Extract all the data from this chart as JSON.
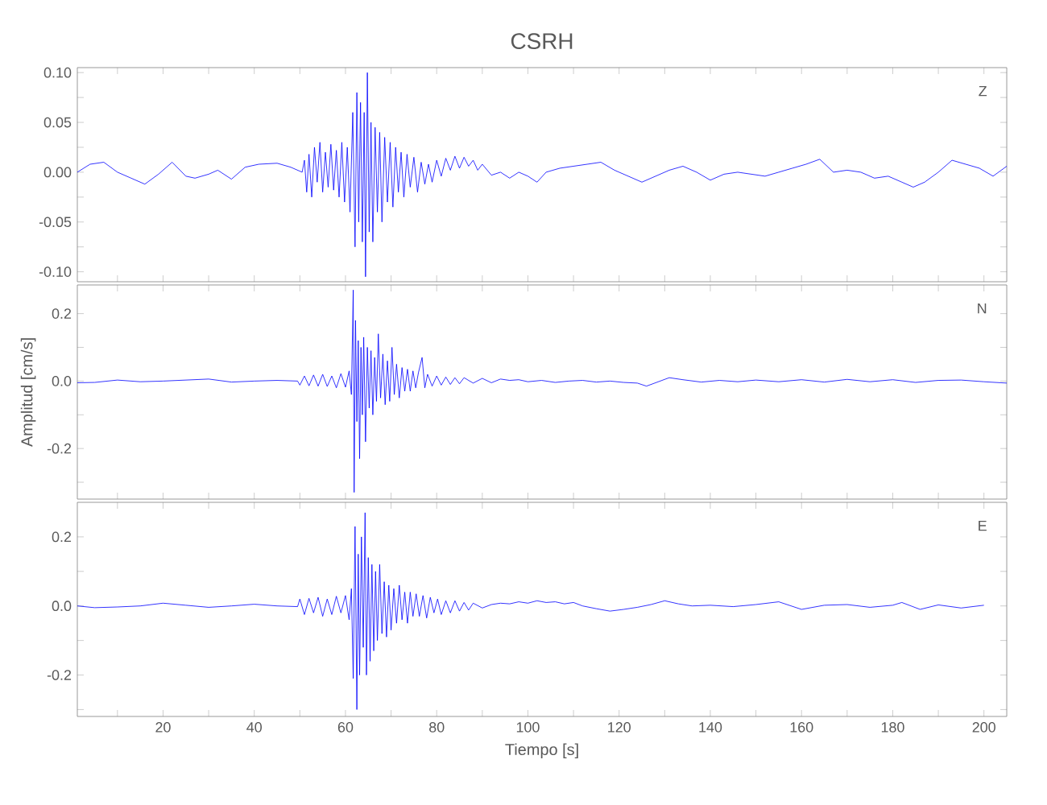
{
  "chart_data": [
    {
      "type": "line",
      "title": "CSRH",
      "annotations": [
        "Z"
      ],
      "tick_labels": "y",
      "xlim": [
        1.2,
        205
      ],
      "ylim": [
        -0.11,
        0.105
      ],
      "xticks": [
        {
          "value": 10,
          "label": null
        },
        20,
        {
          "value": 30,
          "label": null
        },
        40,
        {
          "value": 50,
          "label": null
        },
        60,
        {
          "value": 70,
          "label": null
        },
        80,
        {
          "value": 90,
          "label": null
        },
        100,
        {
          "value": 110,
          "label": null
        },
        120,
        {
          "value": 130,
          "label": null
        },
        140,
        {
          "value": 150,
          "label": null
        },
        160,
        {
          "value": 170,
          "label": null
        },
        180,
        {
          "value": 190,
          "label": null
        },
        200
      ],
      "yticks": [
        {
          "value": -0.1,
          "label": "-0.10"
        },
        {
          "value": -0.075,
          "label": null
        },
        -0.05,
        {
          "value": -0.025,
          "label": null
        },
        {
          "value": 0,
          "label": "0.00"
        },
        {
          "value": 0.025,
          "label": null
        },
        0.05,
        {
          "value": 0.075,
          "label": null
        },
        {
          "value": 0.1,
          "label": "0.10"
        }
      ],
      "series": [
        {
          "color": "#0000ff",
          "x": [
            1.2,
            4,
            7,
            10,
            13,
            16,
            19,
            22,
            25,
            27,
            30,
            32,
            35,
            38,
            41,
            45,
            48,
            50.5,
            51,
            51.5,
            52,
            52.6,
            53.2,
            53.8,
            54.4,
            55,
            55.6,
            56.2,
            56.8,
            57.4,
            58,
            58.6,
            59.2,
            59.8,
            60.4,
            61,
            61.6,
            62.1,
            62.5,
            62.9,
            63.3,
            63.7,
            64.1,
            64.4,
            64.8,
            65.2,
            65.6,
            66,
            66.5,
            67,
            67.5,
            68,
            68.6,
            69.2,
            69.8,
            70.4,
            71,
            71.6,
            72.2,
            72.8,
            73.5,
            74.2,
            75,
            75.8,
            76.6,
            77.4,
            78.2,
            79,
            80,
            81,
            82,
            83,
            84,
            85,
            86,
            87,
            88,
            89,
            90,
            92,
            94,
            96,
            98,
            100,
            102,
            104,
            107,
            110,
            113,
            116,
            119,
            122,
            125,
            128,
            131,
            134,
            137,
            140,
            143,
            146,
            149,
            152,
            155,
            158,
            161,
            164,
            167,
            170,
            173,
            176,
            179,
            182,
            184.5,
            187,
            190,
            193,
            196,
            199,
            202,
            205
          ],
          "values": [
            0.0,
            0.008,
            0.01,
            0.0,
            -0.006,
            -0.012,
            -0.002,
            0.01,
            -0.004,
            -0.006,
            -0.002,
            0.002,
            -0.007,
            0.005,
            0.008,
            0.009,
            0.005,
            0.0,
            0.012,
            -0.02,
            0.018,
            -0.025,
            0.025,
            -0.01,
            0.03,
            -0.02,
            0.02,
            -0.015,
            0.028,
            -0.018,
            0.022,
            -0.025,
            0.03,
            -0.03,
            0.025,
            -0.04,
            0.06,
            -0.075,
            0.08,
            -0.05,
            0.07,
            -0.07,
            0.06,
            -0.105,
            0.1,
            -0.06,
            0.05,
            -0.07,
            0.045,
            -0.04,
            0.04,
            -0.05,
            0.035,
            -0.03,
            0.03,
            -0.035,
            0.025,
            -0.02,
            0.02,
            -0.025,
            0.018,
            -0.015,
            0.015,
            -0.02,
            0.01,
            -0.012,
            0.008,
            -0.01,
            0.012,
            -0.004,
            0.014,
            0.002,
            0.016,
            0.004,
            0.015,
            0.006,
            0.012,
            0.002,
            0.008,
            -0.003,
            0.0,
            -0.006,
            0.0,
            -0.004,
            -0.01,
            0.0,
            0.004,
            0.006,
            0.008,
            0.01,
            0.002,
            -0.004,
            -0.01,
            -0.004,
            0.002,
            0.006,
            0.0,
            -0.008,
            -0.002,
            0.0,
            -0.002,
            -0.004,
            0.0,
            0.004,
            0.008,
            0.013,
            0.0,
            0.002,
            0.0,
            -0.006,
            -0.004,
            -0.01,
            -0.015,
            -0.01,
            0.0,
            0.012,
            0.008,
            0.004,
            -0.004,
            0.006
          ]
        }
      ]
    },
    {
      "type": "line",
      "ylabel": "Amplitud [cm/s]",
      "annotations": [
        "N"
      ],
      "tick_labels": "y",
      "xlim": [
        1.2,
        205
      ],
      "ylim": [
        -0.35,
        0.285
      ],
      "xticks": [
        {
          "value": 10,
          "label": null
        },
        20,
        {
          "value": 30,
          "label": null
        },
        40,
        {
          "value": 50,
          "label": null
        },
        60,
        {
          "value": 70,
          "label": null
        },
        80,
        {
          "value": 90,
          "label": null
        },
        100,
        {
          "value": 110,
          "label": null
        },
        120,
        {
          "value": 130,
          "label": null
        },
        140,
        {
          "value": 150,
          "label": null
        },
        160,
        {
          "value": 170,
          "label": null
        },
        180,
        {
          "value": 190,
          "label": null
        },
        200
      ],
      "yticks": [
        {
          "value": -0.3,
          "label": null
        },
        -0.2,
        {
          "value": -0.1,
          "label": null
        },
        {
          "value": 0,
          "label": "0.0"
        },
        {
          "value": 0.1,
          "label": null
        },
        0.2
      ],
      "series": [
        {
          "color": "#0000ff",
          "x": [
            1.2,
            5,
            10,
            15,
            20,
            25,
            30,
            35,
            40,
            45,
            49.5,
            50,
            51,
            52,
            53,
            54,
            55,
            56,
            57,
            58,
            59,
            60,
            60.8,
            61.3,
            61.7,
            61.9,
            62.2,
            62.5,
            62.8,
            63.1,
            63.4,
            63.7,
            64.0,
            64.4,
            64.8,
            65.2,
            65.6,
            66,
            66.4,
            66.8,
            67.2,
            67.7,
            68.2,
            68.7,
            69.2,
            69.7,
            70.2,
            70.7,
            71.2,
            71.8,
            72.4,
            73,
            73.6,
            74.2,
            74.8,
            75.4,
            76,
            76.8,
            77.4,
            78,
            79,
            80,
            81,
            82,
            83,
            84,
            85,
            86,
            88,
            90,
            92,
            94,
            96,
            98,
            100,
            103,
            106,
            109,
            112,
            115,
            118,
            121,
            124,
            126,
            128,
            131,
            134,
            138,
            142,
            146,
            150,
            155,
            160,
            165,
            170,
            175,
            180,
            185,
            190,
            195,
            200,
            205
          ],
          "values": [
            -0.005,
            -0.004,
            0.003,
            -0.002,
            0.0,
            0.003,
            0.006,
            -0.003,
            0.0,
            0.002,
            0.0,
            -0.012,
            0.015,
            -0.014,
            0.018,
            -0.015,
            0.02,
            -0.016,
            0.015,
            -0.02,
            0.022,
            -0.018,
            0.03,
            -0.04,
            0.27,
            -0.33,
            0.18,
            -0.12,
            0.12,
            -0.23,
            0.1,
            -0.1,
            0.13,
            -0.18,
            0.1,
            -0.08,
            0.09,
            -0.1,
            0.07,
            -0.06,
            0.14,
            -0.05,
            0.08,
            -0.07,
            0.06,
            -0.06,
            0.1,
            -0.04,
            0.05,
            -0.05,
            0.04,
            -0.03,
            0.035,
            -0.03,
            0.03,
            -0.02,
            0.025,
            0.07,
            -0.02,
            0.02,
            -0.015,
            0.015,
            -0.012,
            0.012,
            -0.01,
            0.01,
            -0.008,
            0.01,
            -0.006,
            0.008,
            -0.005,
            0.006,
            0.002,
            0.004,
            -0.002,
            0.002,
            -0.004,
            0.0,
            0.002,
            -0.003,
            0.0,
            -0.004,
            -0.006,
            -0.015,
            -0.005,
            0.01,
            0.004,
            -0.003,
            0.002,
            -0.002,
            0.003,
            -0.002,
            0.004,
            -0.003,
            0.005,
            -0.002,
            0.004,
            -0.004,
            0.002,
            0.003,
            -0.002,
            -0.006
          ]
        }
      ]
    },
    {
      "type": "line",
      "xlabel": "Tiempo [s]",
      "annotations": [
        "E"
      ],
      "xlim": [
        1.2,
        205
      ],
      "ylim": [
        -0.32,
        0.3
      ],
      "xticks": [
        {
          "value": 10,
          "label": null
        },
        20,
        {
          "value": 30,
          "label": null
        },
        40,
        {
          "value": 50,
          "label": null
        },
        60,
        {
          "value": 70,
          "label": null
        },
        80,
        {
          "value": 90,
          "label": null
        },
        100,
        {
          "value": 110,
          "label": null
        },
        120,
        {
          "value": 130,
          "label": null
        },
        140,
        {
          "value": 150,
          "label": null
        },
        160,
        {
          "value": 170,
          "label": null
        },
        180,
        {
          "value": 190,
          "label": null
        },
        200
      ],
      "yticks": [
        {
          "value": -0.3,
          "label": null
        },
        -0.2,
        {
          "value": -0.1,
          "label": null
        },
        {
          "value": 0,
          "label": "0.0"
        },
        {
          "value": 0.1,
          "label": null
        },
        0.2
      ],
      "series": [
        {
          "color": "#0000ff",
          "x": [
            1.2,
            5,
            10,
            15,
            20,
            25,
            30,
            35,
            40,
            45,
            49.5,
            50,
            51,
            52,
            53,
            54,
            55,
            56,
            57,
            58,
            59,
            60,
            60.8,
            61.3,
            61.7,
            62.1,
            62.5,
            62.8,
            63.1,
            63.5,
            63.9,
            64.3,
            64.6,
            65,
            65.4,
            65.8,
            66.2,
            66.6,
            67,
            67.5,
            68,
            68.5,
            69,
            69.5,
            70,
            70.6,
            71.2,
            71.8,
            72.4,
            73,
            73.6,
            74.2,
            74.8,
            75.5,
            76.2,
            77,
            77.8,
            78.6,
            79.4,
            80.2,
            81,
            82,
            83,
            84,
            85,
            86,
            87,
            88,
            90,
            92,
            94,
            96,
            98,
            100,
            102,
            104,
            106,
            108,
            110,
            112,
            115,
            118,
            121,
            124,
            127,
            130,
            133,
            136,
            140,
            145,
            150,
            155,
            160,
            165,
            170,
            175,
            180,
            182,
            186,
            190,
            195,
            200
          ],
          "values": [
            0.0,
            -0.005,
            -0.003,
            0.0,
            0.008,
            0.002,
            -0.004,
            0.0,
            0.005,
            0.0,
            -0.002,
            0.02,
            -0.025,
            0.022,
            -0.02,
            0.025,
            -0.03,
            0.02,
            -0.025,
            0.028,
            -0.02,
            0.03,
            -0.04,
            0.05,
            -0.21,
            0.23,
            -0.3,
            0.15,
            -0.2,
            0.2,
            -0.12,
            0.27,
            -0.2,
            0.14,
            -0.16,
            0.12,
            -0.13,
            0.1,
            -0.1,
            0.12,
            -0.08,
            0.07,
            -0.09,
            0.06,
            -0.07,
            0.05,
            -0.05,
            0.06,
            -0.04,
            0.04,
            -0.05,
            0.04,
            -0.03,
            0.035,
            -0.03,
            0.03,
            -0.035,
            0.025,
            -0.02,
            0.02,
            -0.025,
            0.015,
            -0.02,
            0.015,
            -0.015,
            0.01,
            -0.012,
            0.008,
            -0.006,
            0.004,
            0.008,
            0.006,
            0.012,
            0.008,
            0.015,
            0.01,
            0.012,
            0.006,
            0.01,
            0.0,
            -0.008,
            -0.015,
            -0.01,
            -0.004,
            0.004,
            0.015,
            0.006,
            0.0,
            0.002,
            -0.002,
            0.004,
            0.012,
            -0.01,
            0.002,
            0.004,
            -0.004,
            0.002,
            0.01,
            -0.01,
            0.003,
            -0.006,
            0.002
          ]
        }
      ]
    }
  ]
}
